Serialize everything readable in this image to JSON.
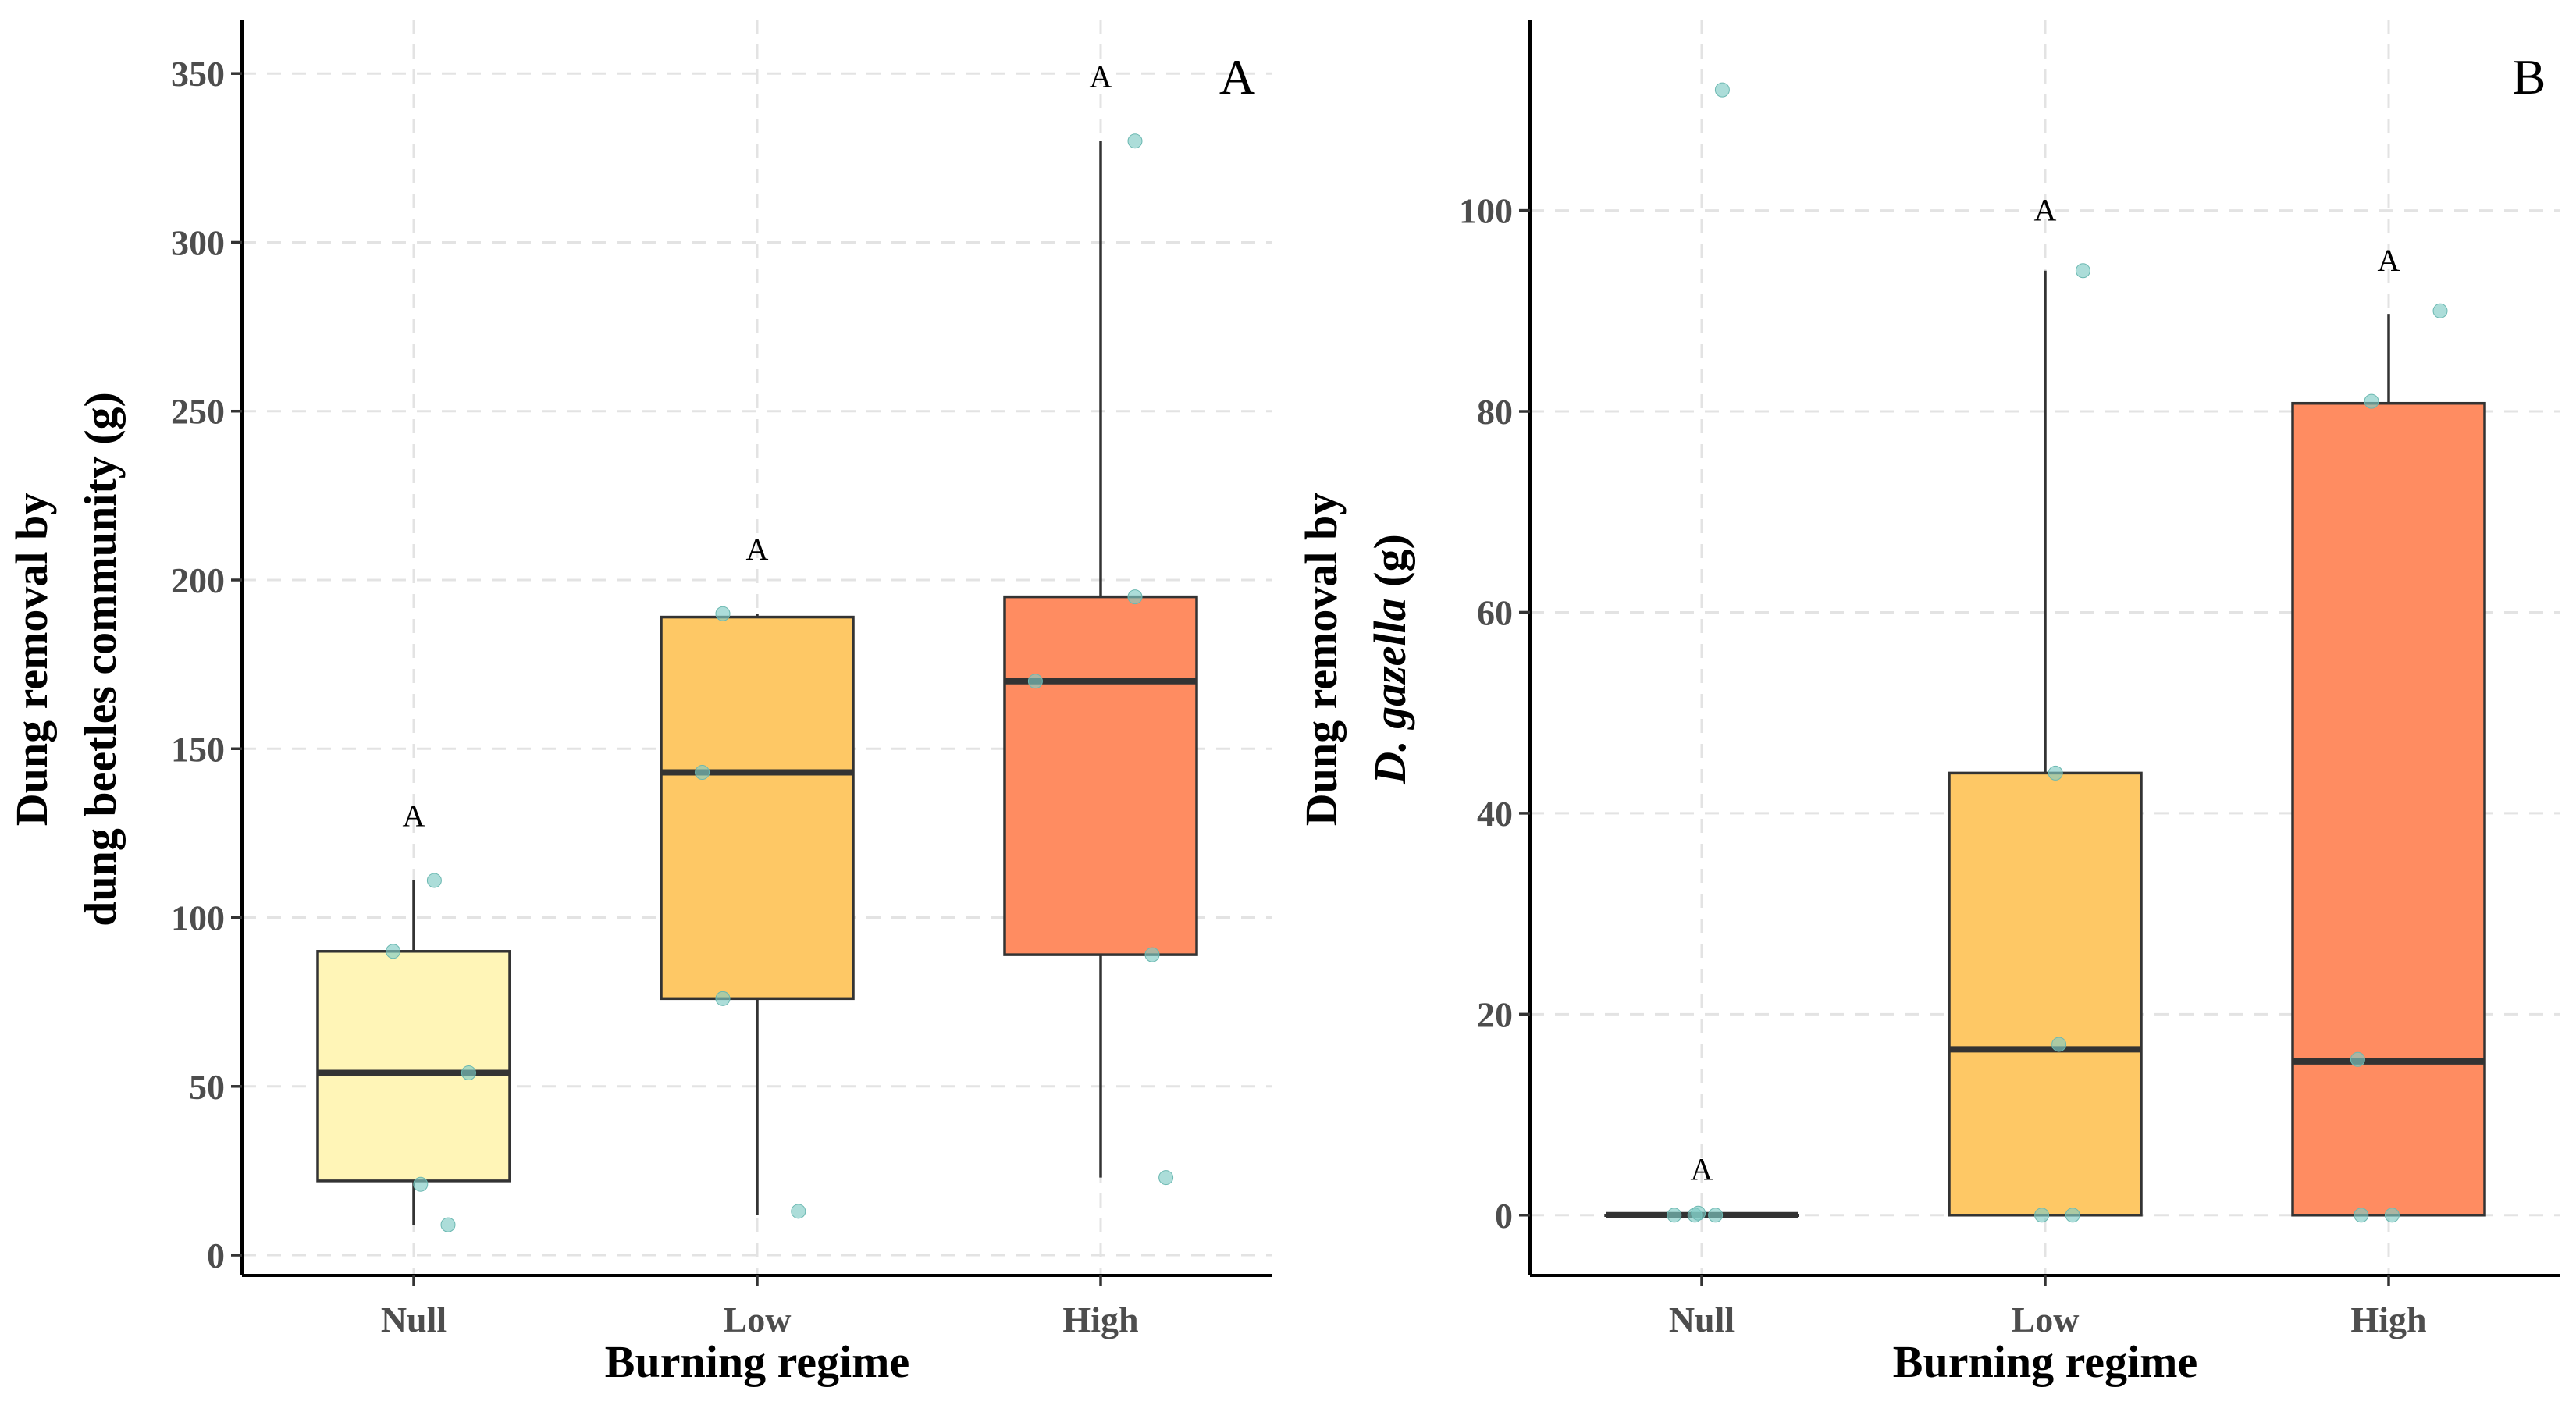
{
  "chart_data": [
    {
      "type": "box",
      "panel_label": "A",
      "xlabel": "Burning regime",
      "ylabel_lines": [
        {
          "text": "Dung removal by",
          "italic": false
        },
        {
          "text": "dung beetles community (g)",
          "italic": false
        }
      ],
      "ylim": [
        -6,
        366
      ],
      "yticks": [
        0,
        50,
        100,
        150,
        200,
        250,
        300,
        350
      ],
      "categories": [
        "Null",
        "Low",
        "High"
      ],
      "boxes": [
        {
          "category": "Null",
          "fill": "#FFF5B7",
          "whisker_low": 9,
          "q1": 22,
          "median": 54,
          "q3": 90,
          "whisker_high": 111,
          "letter": "A",
          "letter_y": 127
        },
        {
          "category": "Low",
          "fill": "#FEC865",
          "whisker_low": 12,
          "q1": 76,
          "median": 143,
          "q3": 189,
          "whisker_high": 190,
          "letter": "A",
          "letter_y": 206
        },
        {
          "category": "High",
          "fill": "#FF8C61",
          "whisker_low": 23,
          "q1": 89,
          "median": 170,
          "q3": 195,
          "whisker_high": 330,
          "letter": "A",
          "letter_y": 346
        }
      ],
      "points": [
        {
          "category": "Null",
          "jitter": -0.06,
          "y": 90
        },
        {
          "category": "Null",
          "jitter": 0.06,
          "y": 111
        },
        {
          "category": "Null",
          "jitter": 0.02,
          "y": 21
        },
        {
          "category": "Null",
          "jitter": 0.16,
          "y": 54
        },
        {
          "category": "Null",
          "jitter": 0.1,
          "y": 9
        },
        {
          "category": "Low",
          "jitter": -0.16,
          "y": 143
        },
        {
          "category": "Low",
          "jitter": -0.1,
          "y": 76
        },
        {
          "category": "Low",
          "jitter": -0.1,
          "y": 190
        },
        {
          "category": "Low",
          "jitter": 0.12,
          "y": 13
        },
        {
          "category": "High",
          "jitter": -0.19,
          "y": 170
        },
        {
          "category": "High",
          "jitter": 0.1,
          "y": 330
        },
        {
          "category": "High",
          "jitter": 0.1,
          "y": 195
        },
        {
          "category": "High",
          "jitter": 0.15,
          "y": 89
        },
        {
          "category": "High",
          "jitter": 0.19,
          "y": 23
        }
      ],
      "point_color": "#7FCBC4",
      "grid": true
    },
    {
      "type": "box",
      "panel_label": "B",
      "xlabel": "Burning regime",
      "ylabel_lines": [
        {
          "text": "Dung removal by",
          "italic": false
        },
        {
          "text": "D. gazella",
          "italic": true,
          "suffix": " (g)"
        }
      ],
      "ylim": [
        -6,
        119
      ],
      "yticks": [
        0,
        20,
        40,
        60,
        80,
        100
      ],
      "categories": [
        "Null",
        "Low",
        "High"
      ],
      "boxes": [
        {
          "category": "Null",
          "fill": "#FFF5B7",
          "whisker_low": 0,
          "q1": 0,
          "median": 0,
          "q3": 0,
          "whisker_high": 0,
          "letter": "A",
          "letter_y": 3.5
        },
        {
          "category": "Low",
          "fill": "#FEC865",
          "whisker_low": 0,
          "q1": 0,
          "median": 16.5,
          "q3": 44,
          "whisker_high": 94,
          "letter": "A",
          "letter_y": 99
        },
        {
          "category": "High",
          "fill": "#FF8C61",
          "whisker_low": 0,
          "q1": 0,
          "median": 15.3,
          "q3": 80.8,
          "whisker_high": 89.7,
          "letter": "A",
          "letter_y": 94
        }
      ],
      "points": [
        {
          "category": "Null",
          "jitter": -0.08,
          "y": 0
        },
        {
          "category": "Null",
          "jitter": -0.02,
          "y": 0
        },
        {
          "category": "Null",
          "jitter": -0.01,
          "y": 0.2
        },
        {
          "category": "Null",
          "jitter": 0.04,
          "y": 0
        },
        {
          "category": "Null",
          "jitter": 0.06,
          "y": 112
        },
        {
          "category": "Low",
          "jitter": -0.01,
          "y": 0
        },
        {
          "category": "Low",
          "jitter": 0.08,
          "y": 0
        },
        {
          "category": "Low",
          "jitter": 0.04,
          "y": 17
        },
        {
          "category": "Low",
          "jitter": 0.03,
          "y": 44
        },
        {
          "category": "Low",
          "jitter": 0.11,
          "y": 94
        },
        {
          "category": "High",
          "jitter": -0.08,
          "y": 0
        },
        {
          "category": "High",
          "jitter": 0.01,
          "y": 0
        },
        {
          "category": "High",
          "jitter": -0.09,
          "y": 15.5
        },
        {
          "category": "High",
          "jitter": -0.05,
          "y": 81
        },
        {
          "category": "High",
          "jitter": 0.15,
          "y": 90
        }
      ],
      "point_color": "#7FCBC4",
      "grid": true
    }
  ]
}
